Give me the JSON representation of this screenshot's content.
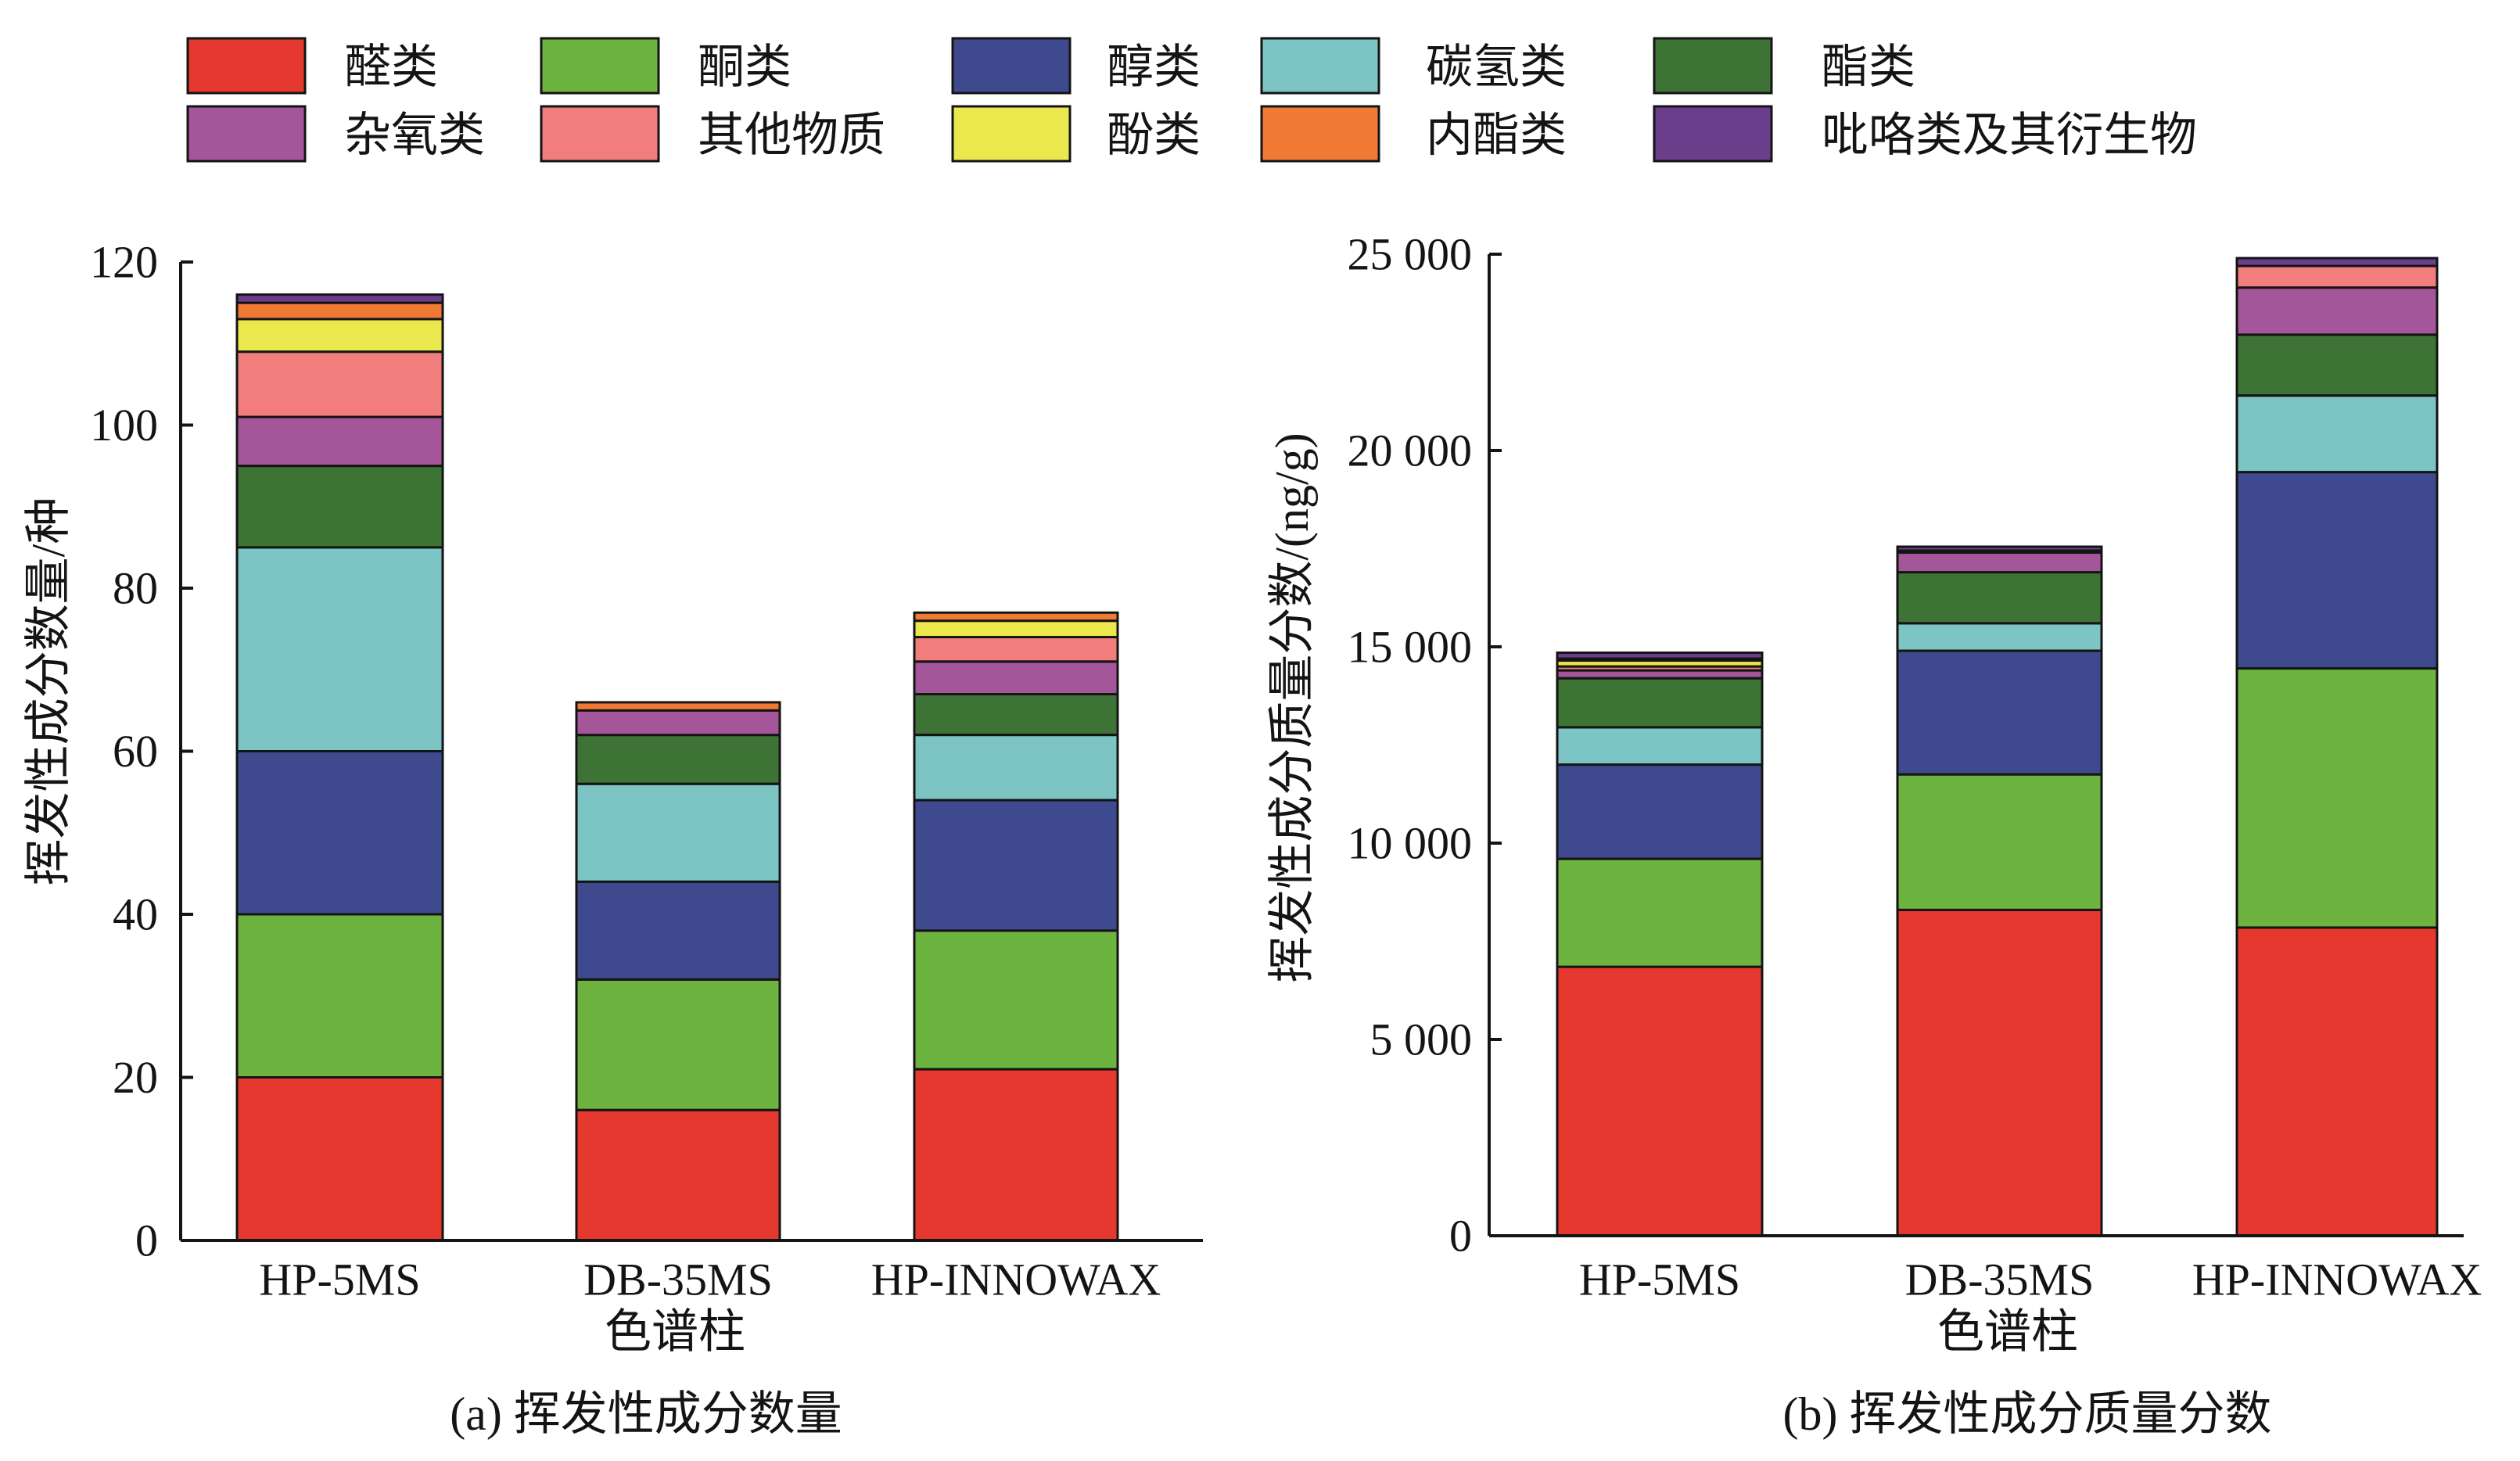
{
  "chart_data": [
    {
      "type": "bar",
      "stacked": true,
      "caption": "(a) 挥发性成分数量",
      "xlabel": "色谱柱",
      "ylabel": "挥发性成分数量/种",
      "categories": [
        "HP-5MS",
        "DB-35MS",
        "HP-INNOWAX"
      ],
      "ylim": [
        0,
        120
      ],
      "yticks": [
        0,
        20,
        40,
        60,
        80,
        100,
        120
      ],
      "ytick_labels": [
        "0",
        "20",
        "40",
        "60",
        "80",
        "100",
        "120"
      ],
      "grid": false,
      "legend_position": "top",
      "series": [
        {
          "name": "醛类",
          "color": "#e5392f",
          "values": [
            20,
            16,
            21
          ]
        },
        {
          "name": "酮类",
          "color": "#6db33f",
          "values": [
            20,
            16,
            17
          ]
        },
        {
          "name": "醇类",
          "color": "#3f4a8e",
          "values": [
            20,
            12,
            16
          ]
        },
        {
          "name": "碳氢类",
          "color": "#7cc5c4",
          "values": [
            25,
            12,
            8
          ]
        },
        {
          "name": "酯类",
          "color": "#3d7335",
          "values": [
            10,
            6,
            5
          ]
        },
        {
          "name": "杂氧类",
          "color": "#a5559a",
          "values": [
            6,
            3,
            4
          ]
        },
        {
          "name": "其他物质",
          "color": "#f17d7d",
          "values": [
            8,
            0,
            3
          ]
        },
        {
          "name": "酚类",
          "color": "#ebe84d",
          "values": [
            4,
            0,
            2
          ]
        },
        {
          "name": "内酯类",
          "color": "#f07a35",
          "values": [
            2,
            1,
            1
          ]
        },
        {
          "name": "吡咯类及其衍生物",
          "color": "#6b3e8b",
          "values": [
            1,
            0,
            0
          ]
        }
      ]
    },
    {
      "type": "bar",
      "stacked": true,
      "caption": "(b) 挥发性成分质量分数",
      "xlabel": "色谱柱",
      "ylabel": "挥发性成分质量分数/(ng/g)",
      "categories": [
        "HP-5MS",
        "DB-35MS",
        "HP-INNOWAX"
      ],
      "ylim": [
        0,
        25000
      ],
      "yticks": [
        0,
        5000,
        10000,
        15000,
        20000,
        25000
      ],
      "ytick_labels": [
        "0",
        "5 000",
        "10 000",
        "15 000",
        "20 000",
        "25 000"
      ],
      "grid": false,
      "legend_position": "top",
      "series": [
        {
          "name": "醛类",
          "color": "#e5392f",
          "values": [
            6850,
            8300,
            7850
          ]
        },
        {
          "name": "酮类",
          "color": "#6db33f",
          "values": [
            2750,
            3450,
            6600
          ]
        },
        {
          "name": "醇类",
          "color": "#3f4a8e",
          "values": [
            2400,
            3150,
            5000
          ]
        },
        {
          "name": "碳氢类",
          "color": "#7cc5c4",
          "values": [
            950,
            700,
            1950
          ]
        },
        {
          "name": "酯类",
          "color": "#3d7335",
          "values": [
            1250,
            1300,
            1550
          ]
        },
        {
          "name": "杂氧类",
          "color": "#a5559a",
          "values": [
            200,
            500,
            1200
          ]
        },
        {
          "name": "其他物质",
          "color": "#f17d7d",
          "values": [
            100,
            0,
            550
          ]
        },
        {
          "name": "酚类",
          "color": "#ebe84d",
          "values": [
            150,
            0,
            0
          ]
        },
        {
          "name": "内酯类",
          "color": "#f07a35",
          "values": [
            50,
            50,
            0
          ]
        },
        {
          "name": "吡咯类及其衍生物",
          "color": "#6b3e8b",
          "values": [
            150,
            100,
            200
          ]
        }
      ]
    }
  ]
}
